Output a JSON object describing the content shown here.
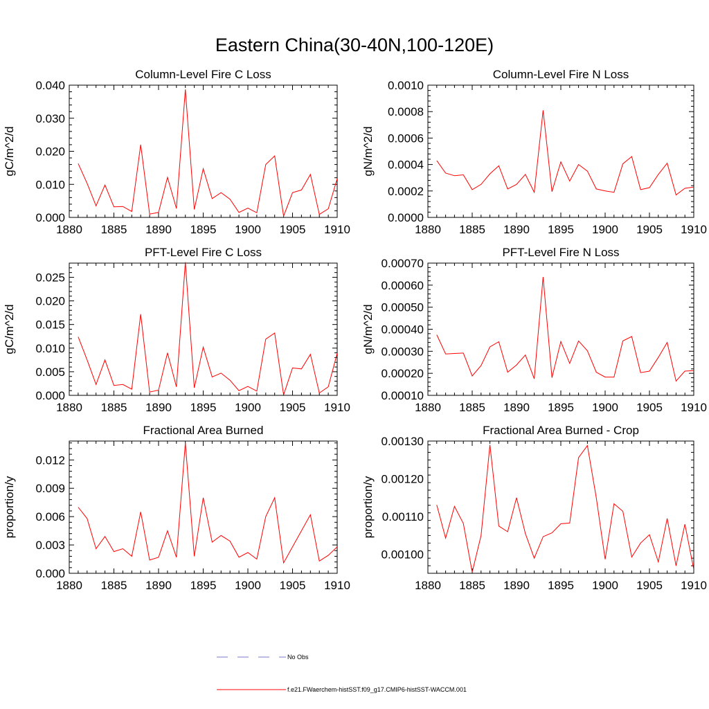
{
  "title": "Eastern China(30-40N,100-120E)",
  "legend": {
    "entries": [
      {
        "label": "No Obs",
        "color": "#7777cc",
        "style": "dashed"
      },
      {
        "label": "f.e21.FWaerchem-histSST.f09_g17.CMIP6-histSST-WACCM.001",
        "color": "#ff0000",
        "style": "solid"
      }
    ]
  },
  "chart_data": [
    {
      "type": "line",
      "title": "Column-Level Fire C Loss",
      "ylabel": "gC/m^2/d",
      "xlim": [
        1880,
        1910
      ],
      "ylim": [
        0,
        0.04
      ],
      "xticks": [
        1880,
        1885,
        1890,
        1895,
        1900,
        1905,
        1910
      ],
      "yticks": [
        0,
        0.01,
        0.02,
        0.03,
        0.04
      ],
      "ytick_labels": [
        "0.000",
        "0.010",
        "0.020",
        "0.030",
        "0.040"
      ],
      "series": [
        {
          "name": "f.e21.FWaerchem-histSST.f09_g17.CMIP6-histSST-WACCM.001",
          "color": "#ff0000",
          "x": [
            1881,
            1882,
            1883,
            1884,
            1885,
            1886,
            1887,
            1888,
            1889,
            1890,
            1891,
            1892,
            1893,
            1894,
            1895,
            1896,
            1897,
            1898,
            1899,
            1900,
            1901,
            1902,
            1903,
            1904,
            1905,
            1906,
            1907,
            1908,
            1909,
            1910
          ],
          "y": [
            0.0163,
            0.0103,
            0.0035,
            0.0098,
            0.0032,
            0.0033,
            0.0018,
            0.022,
            0.001,
            0.0015,
            0.0121,
            0.0027,
            0.0387,
            0.0024,
            0.0147,
            0.0057,
            0.0075,
            0.0055,
            0.0015,
            0.0028,
            0.0014,
            0.016,
            0.0186,
            0.0004,
            0.0075,
            0.0083,
            0.013,
            0.0009,
            0.0026,
            0.0117
          ]
        }
      ]
    },
    {
      "type": "line",
      "title": "Column-Level Fire N Loss",
      "ylabel": "gN/m^2/d",
      "xlim": [
        1880,
        1910
      ],
      "ylim": [
        0,
        0.001
      ],
      "xticks": [
        1880,
        1885,
        1890,
        1895,
        1900,
        1905,
        1910
      ],
      "yticks": [
        0,
        0.0002,
        0.0004,
        0.0006,
        0.0008,
        0.001
      ],
      "ytick_labels": [
        "0.0000",
        "0.0002",
        "0.0004",
        "0.0006",
        "0.0008",
        "0.0010"
      ],
      "series": [
        {
          "name": "f.e21.FWaerchem-histSST.f09_g17.CMIP6-histSST-WACCM.001",
          "color": "#ff0000",
          "x": [
            1881,
            1882,
            1883,
            1884,
            1885,
            1886,
            1887,
            1888,
            1889,
            1890,
            1891,
            1892,
            1893,
            1894,
            1895,
            1896,
            1897,
            1898,
            1899,
            1900,
            1901,
            1902,
            1903,
            1904,
            1905,
            1906,
            1907,
            1908,
            1909,
            1910
          ],
          "y": [
            0.00043,
            0.000335,
            0.000315,
            0.000322,
            0.00021,
            0.00025,
            0.00033,
            0.00039,
            0.000215,
            0.00025,
            0.000325,
            0.00019,
            0.00081,
            0.000195,
            0.00042,
            0.000275,
            0.0004,
            0.00035,
            0.000215,
            0.0002,
            0.00019,
            0.000405,
            0.00046,
            0.00021,
            0.000225,
            0.000325,
            0.00041,
            0.00017,
            0.00022,
            0.00023
          ]
        }
      ]
    },
    {
      "type": "line",
      "title": "PFT-Level Fire C Loss",
      "ylabel": "gC/m^2/d",
      "xlim": [
        1880,
        1910
      ],
      "ylim": [
        0,
        0.028
      ],
      "xticks": [
        1880,
        1885,
        1890,
        1895,
        1900,
        1905,
        1910
      ],
      "yticks": [
        0,
        0.005,
        0.01,
        0.015,
        0.02,
        0.025
      ],
      "ytick_labels": [
        "0.000",
        "0.005",
        "0.010",
        "0.015",
        "0.020",
        "0.025"
      ],
      "series": [
        {
          "name": "f.e21.FWaerchem-histSST.f09_g17.CMIP6-histSST-WACCM.001",
          "color": "#ff0000",
          "x": [
            1881,
            1882,
            1883,
            1884,
            1885,
            1886,
            1887,
            1888,
            1889,
            1890,
            1891,
            1892,
            1893,
            1894,
            1895,
            1896,
            1897,
            1898,
            1899,
            1900,
            1901,
            1902,
            1903,
            1904,
            1905,
            1906,
            1907,
            1908,
            1909,
            1910
          ],
          "y": [
            0.0124,
            0.0075,
            0.0023,
            0.0075,
            0.0021,
            0.0023,
            0.0013,
            0.0172,
            0.0007,
            0.0011,
            0.009,
            0.0018,
            0.0282,
            0.0016,
            0.0102,
            0.0039,
            0.0047,
            0.0032,
            0.001,
            0.0019,
            0.0009,
            0.0119,
            0.0132,
            0.0001,
            0.0058,
            0.0056,
            0.0087,
            0.0005,
            0.0018,
            0.0089
          ]
        }
      ]
    },
    {
      "type": "line",
      "title": "PFT-Level Fire N Loss",
      "ylabel": "gN/m^2/d",
      "xlim": [
        1880,
        1910
      ],
      "ylim": [
        0.0001,
        0.0007
      ],
      "xticks": [
        1880,
        1885,
        1890,
        1895,
        1900,
        1905,
        1910
      ],
      "yticks": [
        0.0001,
        0.0002,
        0.0003,
        0.0004,
        0.0005,
        0.0006,
        0.0007
      ],
      "ytick_labels": [
        "0.00010",
        "0.00020",
        "0.00030",
        "0.00040",
        "0.00050",
        "0.00060",
        "0.00070"
      ],
      "series": [
        {
          "name": "f.e21.FWaerchem-histSST.f09_g17.CMIP6-histSST-WACCM.001",
          "color": "#ff0000",
          "x": [
            1881,
            1882,
            1883,
            1884,
            1885,
            1886,
            1887,
            1888,
            1889,
            1890,
            1891,
            1892,
            1893,
            1894,
            1895,
            1896,
            1897,
            1898,
            1899,
            1900,
            1901,
            1902,
            1903,
            1904,
            1905,
            1906,
            1907,
            1908,
            1909,
            1910
          ],
          "y": [
            0.000375,
            0.000288,
            0.00029,
            0.000292,
            0.000188,
            0.000235,
            0.00032,
            0.000343,
            0.000205,
            0.000238,
            0.000283,
            0.000175,
            0.000637,
            0.00018,
            0.000344,
            0.000245,
            0.000347,
            0.000302,
            0.000205,
            0.000183,
            0.000183,
            0.000347,
            0.000367,
            0.000203,
            0.00021,
            0.000272,
            0.00034,
            0.000165,
            0.00021,
            0.000212
          ]
        }
      ]
    },
    {
      "type": "line",
      "title": "Fractional Area Burned",
      "ylabel": "proportion/y",
      "xlim": [
        1880,
        1910
      ],
      "ylim": [
        0,
        0.014
      ],
      "xticks": [
        1880,
        1885,
        1890,
        1895,
        1900,
        1905,
        1910
      ],
      "yticks": [
        0,
        0.003,
        0.006,
        0.009,
        0.012
      ],
      "ytick_labels": [
        "0.000",
        "0.003",
        "0.006",
        "0.009",
        "0.012"
      ],
      "series": [
        {
          "name": "f.e21.FWaerchem-histSST.f09_g17.CMIP6-histSST-WACCM.001",
          "color": "#ff0000",
          "x": [
            1881,
            1882,
            1883,
            1884,
            1885,
            1886,
            1887,
            1888,
            1889,
            1890,
            1891,
            1892,
            1893,
            1894,
            1895,
            1896,
            1897,
            1898,
            1899,
            1900,
            1901,
            1902,
            1903,
            1904,
            1905,
            1906,
            1907,
            1908,
            1909,
            1910
          ],
          "y": [
            0.007,
            0.0058,
            0.0026,
            0.0039,
            0.0023,
            0.0026,
            0.0018,
            0.0065,
            0.0014,
            0.0017,
            0.0045,
            0.0017,
            0.0138,
            0.0018,
            0.008,
            0.0033,
            0.004,
            0.0034,
            0.0017,
            0.0022,
            0.0015,
            0.006,
            0.008,
            0.0011,
            0.0028,
            0.0045,
            0.0062,
            0.0013,
            0.0019,
            0.0028
          ]
        }
      ]
    },
    {
      "type": "line",
      "title": "Fractional Area Burned - Crop",
      "ylabel": "proportion/y",
      "xlim": [
        1880,
        1910
      ],
      "ylim": [
        0.00095,
        0.0013
      ],
      "xticks": [
        1880,
        1885,
        1890,
        1895,
        1900,
        1905,
        1910
      ],
      "yticks": [
        0.001,
        0.0011,
        0.0012,
        0.0013
      ],
      "ytick_labels": [
        "0.00100",
        "0.00110",
        "0.00120",
        "0.00130"
      ],
      "series": [
        {
          "name": "f.e21.FWaerchem-histSST.f09_g17.CMIP6-histSST-WACCM.001",
          "color": "#ff0000",
          "x": [
            1881,
            1882,
            1883,
            1884,
            1885,
            1886,
            1887,
            1888,
            1889,
            1890,
            1891,
            1892,
            1893,
            1894,
            1895,
            1896,
            1897,
            1898,
            1899,
            1900,
            1901,
            1902,
            1903,
            1904,
            1905,
            1906,
            1907,
            1908,
            1909,
            1910
          ],
          "y": [
            0.001131,
            0.001043,
            0.001127,
            0.001082,
            0.000953,
            0.00105,
            0.00129,
            0.001075,
            0.00106,
            0.00115,
            0.001055,
            0.00099,
            0.001047,
            0.001057,
            0.001081,
            0.001083,
            0.001256,
            0.001288,
            0.00115,
            0.000987,
            0.001134,
            0.001114,
            0.000993,
            0.00103,
            0.001052,
            0.00098,
            0.001095,
            0.00097,
            0.00108,
            0.00096
          ]
        }
      ]
    }
  ]
}
